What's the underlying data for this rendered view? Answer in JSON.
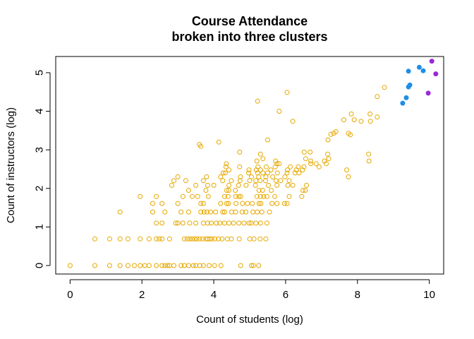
{
  "chart_data": {
    "type": "scatter",
    "title": "Course Attendance",
    "subtitle": "broken into three clusters",
    "xlabel": "Count of students (log)",
    "ylabel": "Count of instructors (log)",
    "xlim": [
      -0.4,
      10.4
    ],
    "ylim": [
      -0.22,
      5.42
    ],
    "xticks": [
      0,
      2,
      4,
      6,
      8,
      10
    ],
    "yticks": [
      0,
      1,
      2,
      3,
      4,
      5
    ],
    "grid": false,
    "colors": {
      "cluster_1": "#E6A800",
      "cluster_2": "#1E8FE6",
      "cluster_3": "#9A28D8"
    },
    "series": [
      {
        "color": "#E6A800",
        "marker": "open-circle",
        "points": [
          [
            0,
            0
          ],
          [
            0.69,
            0
          ],
          [
            1.1,
            0
          ],
          [
            1.39,
            0
          ],
          [
            1.61,
            0
          ],
          [
            1.79,
            0
          ],
          [
            1.95,
            0
          ],
          [
            2.08,
            0
          ],
          [
            2.2,
            0
          ],
          [
            2.4,
            0
          ],
          [
            2.56,
            0
          ],
          [
            2.64,
            0
          ],
          [
            2.71,
            0
          ],
          [
            2.77,
            0
          ],
          [
            2.89,
            0
          ],
          [
            3.09,
            0
          ],
          [
            3.18,
            0
          ],
          [
            3.3,
            0
          ],
          [
            3.43,
            0
          ],
          [
            3.5,
            0
          ],
          [
            3.61,
            0
          ],
          [
            3.71,
            0
          ],
          [
            3.87,
            0
          ],
          [
            4.02,
            0
          ],
          [
            4.2,
            0
          ],
          [
            4.75,
            0
          ],
          [
            5.05,
            0
          ],
          [
            5.1,
            0
          ],
          [
            5.25,
            0
          ],
          [
            0.69,
            0.69
          ],
          [
            1.1,
            0.69
          ],
          [
            1.39,
            0.69
          ],
          [
            1.61,
            0.69
          ],
          [
            1.95,
            0.69
          ],
          [
            2.2,
            0.69
          ],
          [
            2.4,
            0.69
          ],
          [
            2.48,
            0.69
          ],
          [
            2.56,
            0.69
          ],
          [
            2.77,
            0.69
          ],
          [
            3.18,
            0.69
          ],
          [
            3.26,
            0.69
          ],
          [
            3.33,
            0.69
          ],
          [
            3.4,
            0.69
          ],
          [
            3.47,
            0.69
          ],
          [
            3.53,
            0.69
          ],
          [
            3.61,
            0.69
          ],
          [
            3.69,
            0.69
          ],
          [
            3.78,
            0.69
          ],
          [
            3.83,
            0.69
          ],
          [
            3.89,
            0.69
          ],
          [
            3.95,
            0.69
          ],
          [
            4.03,
            0.69
          ],
          [
            4.13,
            0.69
          ],
          [
            4.23,
            0.69
          ],
          [
            4.38,
            0.69
          ],
          [
            4.49,
            0.69
          ],
          [
            4.71,
            0.69
          ],
          [
            5.0,
            0.69
          ],
          [
            5.12,
            0.69
          ],
          [
            5.29,
            0.69
          ],
          [
            5.45,
            0.69
          ],
          [
            2.4,
            1.1
          ],
          [
            2.56,
            1.1
          ],
          [
            2.94,
            1.1
          ],
          [
            3.0,
            1.1
          ],
          [
            3.14,
            1.1
          ],
          [
            3.33,
            1.1
          ],
          [
            3.5,
            1.1
          ],
          [
            3.71,
            1.1
          ],
          [
            3.83,
            1.1
          ],
          [
            3.93,
            1.1
          ],
          [
            4.07,
            1.1
          ],
          [
            4.17,
            1.1
          ],
          [
            4.3,
            1.1
          ],
          [
            4.42,
            1.1
          ],
          [
            4.55,
            1.1
          ],
          [
            4.7,
            1.1
          ],
          [
            4.84,
            1.1
          ],
          [
            4.98,
            1.1
          ],
          [
            5.04,
            1.1
          ],
          [
            5.17,
            1.1
          ],
          [
            5.3,
            1.1
          ],
          [
            5.48,
            1.1
          ],
          [
            1.39,
            1.39
          ],
          [
            2.3,
            1.39
          ],
          [
            2.64,
            1.39
          ],
          [
            3.09,
            1.39
          ],
          [
            3.3,
            1.39
          ],
          [
            3.64,
            1.39
          ],
          [
            3.73,
            1.39
          ],
          [
            3.81,
            1.39
          ],
          [
            3.91,
            1.39
          ],
          [
            4.05,
            1.39
          ],
          [
            4.25,
            1.39
          ],
          [
            4.3,
            1.39
          ],
          [
            4.5,
            1.39
          ],
          [
            4.61,
            1.39
          ],
          [
            4.79,
            1.39
          ],
          [
            4.89,
            1.39
          ],
          [
            5.09,
            1.39
          ],
          [
            5.21,
            1.39
          ],
          [
            5.34,
            1.39
          ],
          [
            5.55,
            1.39
          ],
          [
            2.3,
            1.61
          ],
          [
            2.56,
            1.61
          ],
          [
            3.0,
            1.61
          ],
          [
            3.64,
            1.61
          ],
          [
            3.71,
            1.61
          ],
          [
            4.19,
            1.61
          ],
          [
            4.36,
            1.61
          ],
          [
            4.41,
            1.61
          ],
          [
            4.62,
            1.61
          ],
          [
            4.8,
            1.61
          ],
          [
            4.94,
            1.61
          ],
          [
            5.07,
            1.61
          ],
          [
            5.26,
            1.61
          ],
          [
            5.31,
            1.61
          ],
          [
            5.62,
            1.61
          ],
          [
            5.76,
            1.61
          ],
          [
            5.97,
            1.61
          ],
          [
            6.04,
            1.61
          ],
          [
            1.95,
            1.79
          ],
          [
            2.4,
            1.79
          ],
          [
            3.14,
            1.79
          ],
          [
            3.4,
            1.79
          ],
          [
            3.55,
            1.79
          ],
          [
            3.85,
            1.79
          ],
          [
            4.3,
            1.79
          ],
          [
            4.4,
            1.79
          ],
          [
            4.61,
            1.79
          ],
          [
            4.7,
            1.79
          ],
          [
            4.75,
            1.79
          ],
          [
            5.2,
            1.79
          ],
          [
            5.3,
            1.79
          ],
          [
            5.39,
            1.79
          ],
          [
            5.48,
            1.79
          ],
          [
            5.7,
            1.79
          ],
          [
            6.1,
            1.79
          ],
          [
            6.45,
            1.79
          ],
          [
            3.3,
            1.95
          ],
          [
            3.78,
            1.95
          ],
          [
            4.36,
            1.95
          ],
          [
            4.42,
            1.95
          ],
          [
            4.6,
            1.95
          ],
          [
            5.26,
            1.95
          ],
          [
            5.36,
            1.95
          ],
          [
            5.6,
            1.95
          ],
          [
            6.48,
            1.95
          ],
          [
            6.55,
            1.95
          ],
          [
            2.83,
            2.08
          ],
          [
            3.5,
            2.08
          ],
          [
            3.83,
            2.08
          ],
          [
            4.0,
            2.08
          ],
          [
            4.42,
            2.08
          ],
          [
            4.69,
            2.08
          ],
          [
            4.9,
            2.08
          ],
          [
            5.16,
            2.08
          ],
          [
            5.52,
            2.08
          ],
          [
            5.76,
            2.08
          ],
          [
            6.06,
            2.08
          ],
          [
            6.2,
            2.08
          ],
          [
            6.58,
            2.08
          ],
          [
            2.89,
            2.2
          ],
          [
            3.22,
            2.2
          ],
          [
            3.71,
            2.2
          ],
          [
            4.25,
            2.2
          ],
          [
            4.49,
            2.2
          ],
          [
            4.73,
            2.2
          ],
          [
            5.0,
            2.2
          ],
          [
            5.17,
            2.2
          ],
          [
            5.29,
            2.2
          ],
          [
            5.44,
            2.2
          ],
          [
            5.73,
            2.2
          ],
          [
            5.86,
            2.2
          ],
          [
            6.1,
            2.2
          ],
          [
            3.0,
            2.3
          ],
          [
            3.8,
            2.3
          ],
          [
            4.19,
            2.3
          ],
          [
            4.74,
            2.3
          ],
          [
            5.05,
            2.3
          ],
          [
            5.25,
            2.3
          ],
          [
            5.45,
            2.3
          ],
          [
            5.64,
            2.3
          ],
          [
            5.98,
            2.3
          ],
          [
            7.75,
            2.3
          ],
          [
            4.26,
            2.4
          ],
          [
            4.32,
            2.4
          ],
          [
            4.97,
            2.4
          ],
          [
            5.22,
            2.4
          ],
          [
            5.37,
            2.4
          ],
          [
            5.5,
            2.4
          ],
          [
            5.77,
            2.4
          ],
          [
            6.04,
            2.4
          ],
          [
            6.26,
            2.4
          ],
          [
            6.37,
            2.4
          ],
          [
            4.42,
            2.48
          ],
          [
            4.98,
            2.48
          ],
          [
            5.18,
            2.48
          ],
          [
            5.3,
            2.48
          ],
          [
            5.59,
            2.48
          ],
          [
            6.05,
            2.48
          ],
          [
            6.3,
            2.48
          ],
          [
            6.47,
            2.48
          ],
          [
            7.7,
            2.48
          ],
          [
            4.34,
            2.56
          ],
          [
            4.72,
            2.56
          ],
          [
            5.23,
            2.56
          ],
          [
            5.46,
            2.56
          ],
          [
            5.71,
            2.56
          ],
          [
            6.13,
            2.56
          ],
          [
            6.35,
            2.56
          ],
          [
            6.51,
            2.56
          ],
          [
            6.93,
            2.56
          ],
          [
            4.35,
            2.64
          ],
          [
            5.76,
            2.64
          ],
          [
            5.82,
            2.64
          ],
          [
            6.7,
            2.64
          ],
          [
            6.85,
            2.64
          ],
          [
            7.13,
            2.64
          ],
          [
            5.2,
            2.71
          ],
          [
            5.72,
            2.71
          ],
          [
            6.7,
            2.71
          ],
          [
            7.08,
            2.71
          ],
          [
            8.32,
            2.71
          ],
          [
            5.37,
            2.77
          ],
          [
            6.56,
            2.77
          ],
          [
            7.2,
            2.77
          ],
          [
            4.72,
            2.94
          ],
          [
            5.3,
            2.89
          ],
          [
            6.52,
            2.94
          ],
          [
            6.68,
            2.94
          ],
          [
            7.17,
            2.89
          ],
          [
            8.31,
            2.89
          ],
          [
            3.64,
            3.09
          ],
          [
            3.6,
            3.14
          ],
          [
            4.14,
            3.2
          ],
          [
            5.5,
            3.26
          ],
          [
            7.18,
            3.26
          ],
          [
            7.26,
            3.4
          ],
          [
            7.34,
            3.43
          ],
          [
            7.4,
            3.47
          ],
          [
            7.75,
            3.43
          ],
          [
            7.8,
            3.39
          ],
          [
            7.62,
            3.78
          ],
          [
            7.91,
            3.78
          ],
          [
            7.83,
            3.93
          ],
          [
            8.1,
            3.74
          ],
          [
            8.36,
            3.74
          ],
          [
            8.35,
            3.93
          ],
          [
            8.55,
            3.85
          ],
          [
            6.2,
            3.74
          ],
          [
            5.82,
            4.0
          ],
          [
            8.55,
            4.38
          ],
          [
            8.75,
            4.62
          ],
          [
            5.22,
            4.26
          ],
          [
            6.04,
            4.49
          ]
        ]
      },
      {
        "color": "#1E8FE6",
        "marker": "filled-circle",
        "points": [
          [
            9.26,
            4.21
          ],
          [
            9.36,
            4.35
          ],
          [
            9.42,
            4.63
          ],
          [
            9.46,
            4.68
          ],
          [
            9.42,
            5.04
          ],
          [
            9.72,
            5.14
          ],
          [
            9.83,
            5.05
          ]
        ]
      },
      {
        "color": "#9A28D8",
        "marker": "filled-circle",
        "points": [
          [
            9.97,
            4.47
          ],
          [
            10.07,
            5.3
          ],
          [
            10.18,
            4.97
          ]
        ]
      }
    ]
  }
}
